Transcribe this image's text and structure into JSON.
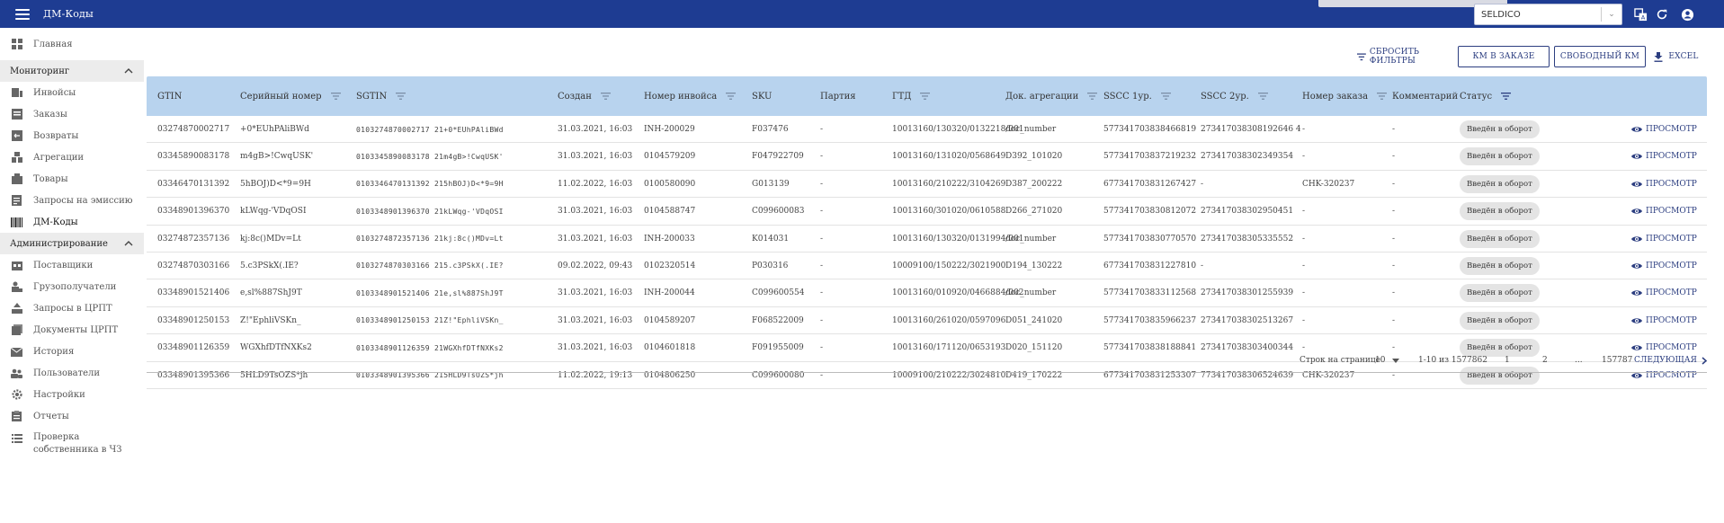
{
  "app": {
    "title": "ДМ-Коды"
  },
  "header": {
    "org_select": "SELDICO"
  },
  "sidebar": {
    "home": "Главная",
    "monitoring_title": "Мониторинг",
    "monitoring": [
      "Инвойсы",
      "Заказы",
      "Возвраты",
      "Агрегации",
      "Товары",
      "Запросы на эмиссию",
      "ДМ-Коды"
    ],
    "admin_title": "Администрирование",
    "admin": [
      "Поставщики",
      "Грузополучатели",
      "Запросы в ЦРПТ",
      "Документы ЦРПТ",
      "История",
      "Пользователи",
      "Настройки",
      "Отчеты",
      "Проверка собственника в ЧЗ"
    ]
  },
  "toolbar": {
    "reset_filters": "СБРОСИТЬ ФИЛЬТРЫ",
    "km_in_order": "КМ В ЗАКАЗЕ",
    "free_km": "СВОБОДНЫЙ КМ",
    "excel": "EXCEL"
  },
  "table": {
    "headers": [
      "GTIN",
      "Серийный номер",
      "SGTIN",
      "Создан",
      "Номер инвойса",
      "SKU",
      "Партия",
      "ГТД",
      "Док. агрегации",
      "SSCC 1ур.",
      "SSCC 2ур.",
      "Номер заказа",
      "Комментарий",
      "Статус"
    ],
    "view_label": "ПРОСМОТР",
    "rows": [
      [
        "03274870002717",
        "+0*EUhPAliBWd",
        "0103274870002717 21+0*EUhPAliBWd",
        "31.03.2021, 16:03",
        "INH-200029",
        "F037476",
        "-",
        "10013160/130320/0132218/001",
        "doc_number",
        "577341703838466819",
        "273417038308192646 4",
        "-",
        "-",
        "Введён в оборот"
      ],
      [
        "03345890083178",
        "m4gB>!CwqUSK'",
        "0103345890083178 21m4gB>!CwqUSK'",
        "31.03.2021, 16:03",
        "0104579209",
        "F047922709",
        "-",
        "10013160/131020/0568649",
        "D392_101020",
        "577341703837219232",
        "273417038302349354",
        "-",
        "-",
        "Введён в оборот"
      ],
      [
        "03346470131392",
        "5hBOJ)D<*9=9H",
        "0103346470131392 215hBOJ)D<*9=9H",
        "11.02.2022, 16:03",
        "0100580090",
        "G013139",
        "-",
        "10013160/210222/3104269",
        "D387_200222",
        "677341703831267427",
        "-",
        "CHK-320237",
        "-",
        "Введён в оборот"
      ],
      [
        "03348901396370",
        "kLWqg-'VDqOSI",
        "0103348901396370 21kLWqg-'VDqOSI",
        "31.03.2021, 16:03",
        "0104588747",
        "C099600083",
        "-",
        "10013160/301020/0610588",
        "D266_271020",
        "577341703830812072",
        "273417038302950451",
        "-",
        "-",
        "Введён в оборот"
      ],
      [
        "03274872357136",
        "kj:8c()MDv=Lt",
        "0103274872357136 21kj:8c()MDv=Lt",
        "31.03.2021, 16:03",
        "INH-200033",
        "K014031",
        "-",
        "10013160/130320/0131994/001",
        "doc_number",
        "577341703830770570",
        "273417038305335552",
        "-",
        "-",
        "Введён в оборот"
      ],
      [
        "03274870303166",
        "5.c3PSkX(.IE?",
        "0103274870303166 215.c3PSkX(.IE?",
        "09.02.2022, 09:43",
        "0102320514",
        "P030316",
        "-",
        "10009100/150222/3021900",
        "D194_130222",
        "677341703831227810",
        "-",
        "-",
        "-",
        "Введён в оборот"
      ],
      [
        "03348901521406",
        "e,sl%887ShJ9T",
        "0103348901521406 21e,sl%887ShJ9T",
        "31.03.2021, 16:03",
        "INH-200044",
        "C099600554",
        "-",
        "10013160/010920/0466884/002",
        "doc_number",
        "577341703833112568",
        "273417038301255939",
        "-",
        "-",
        "Введён в оборот"
      ],
      [
        "03348901250153",
        "Z!\"EphliVSKn_",
        "0103348901250153 21Z!\"EphliVSKn_",
        "31.03.2021, 16:03",
        "0104589207",
        "F068522009",
        "-",
        "10013160/261020/0597096",
        "D051_241020",
        "577341703835966237",
        "273417038302513267",
        "-",
        "-",
        "Введён в оборот"
      ],
      [
        "03348901126359",
        "WGXhfDTfNXKs2",
        "0103348901126359 21WGXhfDTfNXKs2",
        "31.03.2021, 16:03",
        "0104601818",
        "F091955009",
        "-",
        "10013160/171120/0653193",
        "D020_151120",
        "577341703838188841",
        "273417038303400344",
        "-",
        "-",
        "Введён в оборот"
      ],
      [
        "03348901395366",
        "5HLD9TsOZS*jh",
        "0103348901395366 215HLD9TsOZS*jh",
        "11.02.2022, 19:13",
        "0104806250",
        "C099600080",
        "-",
        "10009100/210222/3024810",
        "D419_170222",
        "677341703831253307",
        "773417038306524639",
        "CHK-320237",
        "-",
        "Введён в оборот"
      ]
    ]
  },
  "pagination": {
    "rows_per_page_label": "Строк на странице",
    "rows_per_page": "10",
    "range": "1-10 из 1577862",
    "pages": [
      "1",
      "2",
      "...",
      "157787"
    ],
    "next": "СЛЕДУЮЩАЯ"
  },
  "colors": {
    "header_bar": "#1e3c92",
    "table_header": "#b8d3ee",
    "accent": "#2c3e80"
  }
}
